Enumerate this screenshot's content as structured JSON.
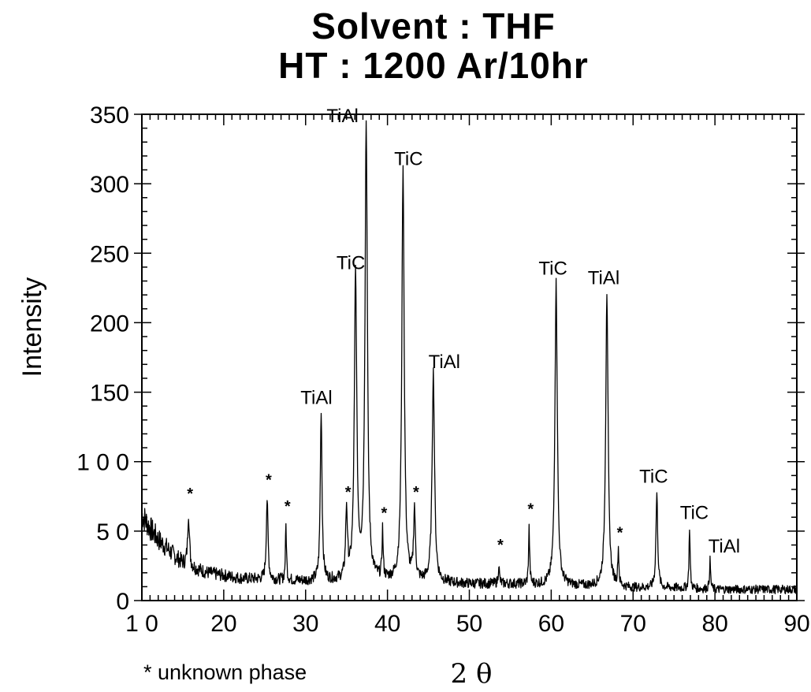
{
  "chart_data": {
    "type": "line",
    "title": "Solvent : THF",
    "subtitle": "HT : 1200 Ar/10hr",
    "xlabel": "2 θ",
    "ylabel": "Intensity",
    "xlim": [
      10,
      90
    ],
    "ylim": [
      0,
      350
    ],
    "x_ticks": [
      "1 0",
      "20",
      "30",
      "40",
      "50",
      "60",
      "70",
      "80",
      "90"
    ],
    "y_ticks": [
      "0",
      "5 0",
      "1 0 0",
      "150",
      "200",
      "250",
      "300",
      "350"
    ],
    "grid": false,
    "footnote": "* unknown phase",
    "background": [
      [
        10,
        62
      ],
      [
        11,
        52
      ],
      [
        12,
        44
      ],
      [
        13,
        38
      ],
      [
        14,
        32
      ],
      [
        15,
        27
      ],
      [
        16,
        24
      ],
      [
        17,
        22
      ],
      [
        18,
        20
      ],
      [
        20,
        18
      ],
      [
        22,
        16
      ],
      [
        25,
        15
      ],
      [
        30,
        14
      ],
      [
        35,
        14
      ],
      [
        40,
        14
      ],
      [
        45,
        13
      ],
      [
        50,
        12
      ],
      [
        55,
        12
      ],
      [
        60,
        11
      ],
      [
        65,
        10
      ],
      [
        70,
        9
      ],
      [
        75,
        9
      ],
      [
        80,
        8
      ],
      [
        85,
        8
      ],
      [
        90,
        8
      ]
    ],
    "peaks": [
      {
        "x": 15.7,
        "y": 63,
        "label": "*"
      },
      {
        "x": 25.3,
        "y": 73,
        "label": "*"
      },
      {
        "x": 27.6,
        "y": 54,
        "label": "*"
      },
      {
        "x": 31.9,
        "y": 137,
        "label": "TiAl"
      },
      {
        "x": 35.0,
        "y": 64,
        "label": "*"
      },
      {
        "x": 36.1,
        "y": 233,
        "label": "TiC"
      },
      {
        "x": 37.4,
        "y": 342,
        "label": "TiAl"
      },
      {
        "x": 39.4,
        "y": 49,
        "label": "*"
      },
      {
        "x": 41.9,
        "y": 309,
        "label": "TiC"
      },
      {
        "x": 43.3,
        "y": 64,
        "label": "*"
      },
      {
        "x": 45.6,
        "y": 164,
        "label": "TiAl"
      },
      {
        "x": 53.6,
        "y": 26,
        "label": "*"
      },
      {
        "x": 57.3,
        "y": 52,
        "label": "*"
      },
      {
        "x": 60.6,
        "y": 229,
        "label": "TiC"
      },
      {
        "x": 66.8,
        "y": 222,
        "label": "TiAl"
      },
      {
        "x": 68.2,
        "y": 35,
        "label": "*"
      },
      {
        "x": 72.9,
        "y": 77,
        "label": "TiC"
      },
      {
        "x": 76.9,
        "y": 53,
        "label": "TiC"
      },
      {
        "x": 79.4,
        "y": 29,
        "label": "TiAl"
      }
    ]
  }
}
